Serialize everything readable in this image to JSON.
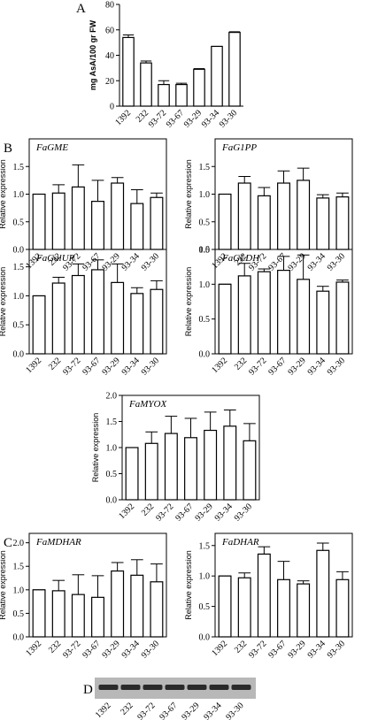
{
  "chart_data": [
    {
      "type": "bar",
      "panel": "A",
      "y_label": "mg AsA/100 gr FW",
      "frame": false,
      "categories": [
        "1392",
        "232",
        "93-72",
        "93-67",
        "93-29",
        "93-34",
        "93-30"
      ],
      "values": [
        54,
        34,
        17,
        17,
        29,
        47,
        58
      ],
      "errors": [
        2,
        1.5,
        3,
        1,
        0.5,
        0,
        0.5
      ],
      "ylim": [
        0,
        80
      ],
      "yticks": [
        0,
        20,
        40,
        60,
        80
      ],
      "color": "#ffffff"
    },
    {
      "type": "bar",
      "title": "FaGME",
      "y_label": "Relative expression",
      "frame": true,
      "categories": [
        "1392",
        "232",
        "93-72",
        "93-67",
        "93-29",
        "93-34",
        "93-30"
      ],
      "values": [
        1.0,
        1.02,
        1.13,
        0.87,
        1.2,
        0.83,
        0.94
      ],
      "errors": [
        0,
        0.15,
        0.4,
        0.38,
        0.1,
        0.25,
        0.08
      ],
      "ylim": [
        0,
        2
      ],
      "yticks": [
        {
          "value": 0,
          "label": "0.0"
        },
        {
          "value": 0.5,
          "label": "0.5"
        },
        {
          "value": 1,
          "label": "1.0"
        },
        {
          "value": 1.5,
          "label": "1.5"
        }
      ],
      "color": "#ffffff"
    },
    {
      "type": "bar",
      "title": "FaG1PP",
      "y_label": "Relative expression",
      "frame": true,
      "categories": [
        "1392",
        "232",
        "93-72",
        "93-67",
        "93-29",
        "93-34",
        "93-30"
      ],
      "values": [
        1.0,
        1.2,
        0.97,
        1.2,
        1.25,
        0.93,
        0.95
      ],
      "errors": [
        0,
        0.12,
        0.15,
        0.22,
        0.22,
        0.06,
        0.07
      ],
      "ylim": [
        0,
        2
      ],
      "yticks": [
        {
          "value": 0,
          "label": "0.0"
        },
        {
          "value": 0.5,
          "label": "0.5"
        },
        {
          "value": 1,
          "label": "1.0"
        },
        {
          "value": 1.5,
          "label": "1.5"
        }
      ],
      "color": "#ffffff"
    },
    {
      "type": "bar",
      "title": "FaGalUR",
      "y_label": "Relative expression",
      "frame": true,
      "categories": [
        "1392",
        "232",
        "93-72",
        "93-67",
        "93-29",
        "93-34",
        "93-30"
      ],
      "values": [
        1.0,
        1.22,
        1.35,
        1.45,
        1.23,
        1.04,
        1.11
      ],
      "errors": [
        0,
        0.1,
        0.2,
        0.17,
        0.32,
        0.1,
        0.15
      ],
      "ylim": [
        0,
        1.8
      ],
      "yticks": [
        {
          "value": 0,
          "label": "0.0"
        },
        {
          "value": 0.5,
          "label": "0.5"
        },
        {
          "value": 1,
          "label": "1.0"
        },
        {
          "value": 1.5,
          "label": "1.5"
        }
      ],
      "color": "#ffffff"
    },
    {
      "type": "bar",
      "title": "FaGLDH",
      "y_label": "Relative expression",
      "frame": true,
      "categories": [
        "1392",
        "232",
        "93-72",
        "93-67",
        "93-29",
        "93-34",
        "93-30"
      ],
      "values": [
        1.0,
        1.12,
        1.18,
        1.2,
        1.07,
        0.9,
        1.03
      ],
      "errors": [
        0,
        0.18,
        0.04,
        0.2,
        0.35,
        0.07,
        0.03
      ],
      "ylim": [
        0,
        1.5
      ],
      "yticks": [
        {
          "value": 0,
          "label": "0.0"
        },
        {
          "value": 0.5,
          "label": "0.5"
        },
        {
          "value": 1,
          "label": "1.0"
        },
        {
          "value": 1.5,
          "label": "1.5"
        }
      ],
      "color": "#ffffff"
    },
    {
      "type": "bar",
      "title": "FaMYOX",
      "y_label": "Relative expression",
      "frame": true,
      "categories": [
        "1392",
        "232",
        "93-72",
        "93-67",
        "93-29",
        "93-34",
        "93-30"
      ],
      "values": [
        1.0,
        1.08,
        1.27,
        1.19,
        1.33,
        1.41,
        1.13
      ],
      "errors": [
        0,
        0.22,
        0.33,
        0.37,
        0.35,
        0.31,
        0.33
      ],
      "ylim": [
        0,
        2.0
      ],
      "yticks": [
        {
          "value": 0,
          "label": "0.0"
        },
        {
          "value": 0.5,
          "label": "0.5"
        },
        {
          "value": 1,
          "label": "1.0"
        },
        {
          "value": 1.5,
          "label": "1.5"
        },
        {
          "value": 2,
          "label": "2.0"
        }
      ],
      "color": "#ffffff"
    },
    {
      "type": "bar",
      "panel": "C",
      "title": "FaMDHAR",
      "y_label": "Relative expression",
      "frame": true,
      "categories": [
        "1392",
        "232",
        "93-72",
        "93-67",
        "93-29",
        "93-34",
        "93-30"
      ],
      "values": [
        1.0,
        0.98,
        0.9,
        0.84,
        1.4,
        1.31,
        1.17
      ],
      "errors": [
        0,
        0.22,
        0.42,
        0.46,
        0.18,
        0.33,
        0.38
      ],
      "ylim": [
        0,
        2.2
      ],
      "yticks": [
        {
          "value": 0,
          "label": "0.0"
        },
        {
          "value": 0.5,
          "label": "0.5"
        },
        {
          "value": 1,
          "label": "1.0"
        },
        {
          "value": 1.5,
          "label": "1.5"
        },
        {
          "value": 2,
          "label": "2.0"
        }
      ],
      "color": "#ffffff"
    },
    {
      "type": "bar",
      "title": "FaDHAR",
      "y_label": "Relative expression",
      "frame": true,
      "categories": [
        "1392",
        "232",
        "93-72",
        "93-67",
        "93-29",
        "93-34",
        "93-30"
      ],
      "values": [
        1.0,
        0.97,
        1.36,
        0.94,
        0.87,
        1.42,
        0.94
      ],
      "errors": [
        0,
        0.08,
        0.12,
        0.3,
        0.05,
        0.12,
        0.13
      ],
      "ylim": [
        0,
        1.7
      ],
      "yticks": [
        {
          "value": 0,
          "label": "0.0"
        },
        {
          "value": 0.5,
          "label": "0.5"
        },
        {
          "value": 1,
          "label": "1.0"
        },
        {
          "value": 1.5,
          "label": "1.5"
        }
      ],
      "color": "#ffffff"
    }
  ],
  "panel_b_label": "B",
  "blot": {
    "panel": "D",
    "lanes": [
      "1392",
      "232",
      "93-72",
      "93-67",
      "93-29",
      "93-34",
      "93-30"
    ]
  }
}
